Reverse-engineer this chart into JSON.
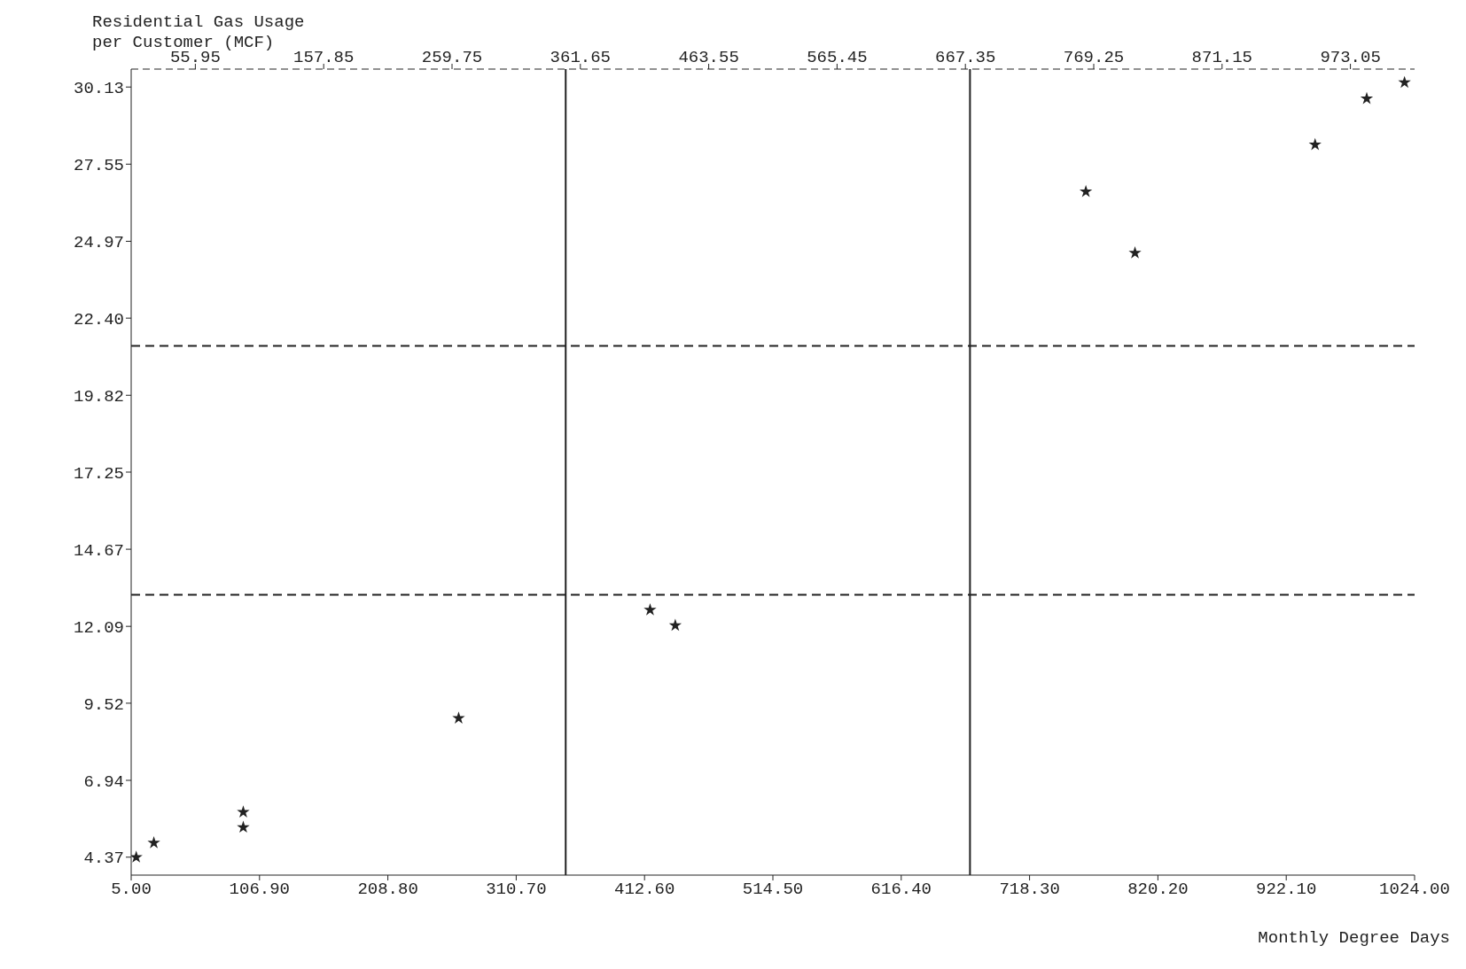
{
  "chart_data": {
    "type": "scatter",
    "ylabel": "Residential Gas Usage per Customer (MCF)",
    "xlabel": "Monthly Degree Days",
    "x": [
      9,
      23,
      94,
      94,
      265,
      417,
      437,
      763,
      802,
      945,
      986,
      1016
    ],
    "values": [
      4.37,
      4.85,
      5.88,
      5.37,
      9.02,
      12.64,
      12.12,
      26.63,
      24.58,
      28.2,
      29.74,
      30.28
    ],
    "color": "#222222",
    "marker": "star",
    "xlim": [
      5,
      1024
    ],
    "xticks": [
      {
        "value": 5,
        "label": "5.00"
      },
      {
        "value": 106.9,
        "label": "106.90"
      },
      {
        "value": 208.8,
        "label": "208.80"
      },
      {
        "value": 310.7,
        "label": "310.70"
      },
      {
        "value": 412.6,
        "label": "412.60"
      },
      {
        "value": 514.5,
        "label": "514.50"
      },
      {
        "value": 616.4,
        "label": "616.40"
      },
      {
        "value": 718.3,
        "label": "718.30"
      },
      {
        "value": 820.2,
        "label": "820.20"
      },
      {
        "value": 922.1,
        "label": "922.10"
      },
      {
        "value": 1024,
        "label": "1024.00"
      }
    ],
    "x2lim": [
      5,
      1024
    ],
    "x2ticks": [
      55.95,
      157.85,
      259.75,
      361.65,
      463.55,
      565.45,
      667.35,
      769.25,
      871.15,
      973.05
    ],
    "ylim": [
      3.77,
      30.73
    ],
    "yticks": [
      4.37,
      6.94,
      9.52,
      12.09,
      14.67,
      17.25,
      19.82,
      {
        "value": 22.4,
        "label": "22.40"
      },
      24.97,
      27.55,
      30.13
    ],
    "ref_lines": [
      {
        "axis": "y",
        "value": 21.47,
        "line_style": "dashed"
      },
      {
        "axis": "y",
        "value": 13.15,
        "line_style": "dashed"
      },
      {
        "axis": "x",
        "value": 350,
        "line_style": "solid"
      },
      {
        "axis": "x",
        "value": 671,
        "line_style": "solid"
      }
    ],
    "grid": false,
    "legend": false
  }
}
